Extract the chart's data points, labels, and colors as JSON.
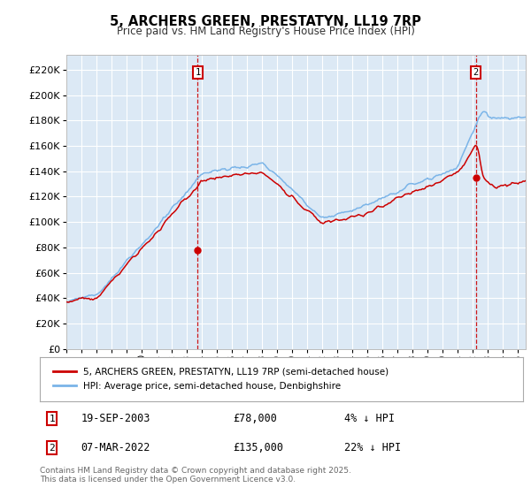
{
  "title": "5, ARCHERS GREEN, PRESTATYN, LL19 7RP",
  "subtitle": "Price paid vs. HM Land Registry's House Price Index (HPI)",
  "ytick_values": [
    0,
    20000,
    40000,
    60000,
    80000,
    100000,
    120000,
    140000,
    160000,
    180000,
    200000,
    220000
  ],
  "ylim": [
    0,
    232000
  ],
  "plot_bg_color": "#dce9f5",
  "fig_bg_color": "#ffffff",
  "grid_color": "#ffffff",
  "hpi_color": "#7ab4e8",
  "price_color": "#cc0000",
  "marker1_x": 2003.72,
  "marker1_price": 78000,
  "marker2_x": 2022.18,
  "marker2_price": 135000,
  "legend_label1": "5, ARCHERS GREEN, PRESTATYN, LL19 7RP (semi-detached house)",
  "legend_label2": "HPI: Average price, semi-detached house, Denbighshire",
  "footnote": "Contains HM Land Registry data © Crown copyright and database right 2025.\nThis data is licensed under the Open Government Licence v3.0.",
  "xstart": 1995.0,
  "xend": 2025.5
}
